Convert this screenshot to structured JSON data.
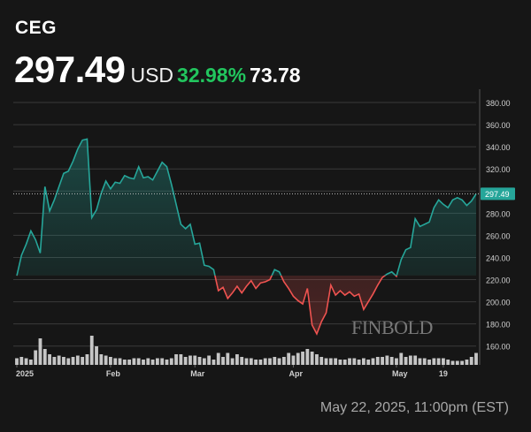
{
  "header": {
    "ticker": "CEG",
    "price": "297.49",
    "currency": "USD",
    "change_percent": "32.98%",
    "change_absolute": "73.78"
  },
  "timestamp": "May 22, 2025, 11:00pm (EST)",
  "watermark": "FINBOLD",
  "colors": {
    "background": "#161616",
    "up": "#26a69a",
    "down": "#ef5350",
    "change_text": "#22c55e",
    "grid": "#3a3a3a",
    "volume": "#d9d9d9",
    "axis_text": "#cfcfcf"
  },
  "chart_data": {
    "type": "line",
    "title": "",
    "xlabel": "",
    "ylabel": "",
    "ylim": [
      143,
      392
    ],
    "y_ticks": [
      160,
      180,
      200,
      220,
      240,
      260,
      280,
      300,
      320,
      340,
      360,
      380
    ],
    "y_tick_labels": [
      "160.00",
      "180.00",
      "200.00",
      "220.00",
      "240.00",
      "260.00",
      "280.00",
      "300.00",
      "320.00",
      "340.00",
      "360.00",
      "380.00"
    ],
    "x_tick_labels": [
      {
        "label": "2025",
        "index": 0
      },
      {
        "label": "Feb",
        "index": 20
      },
      {
        "label": "Mar",
        "index": 38
      },
      {
        "label": "Apr",
        "index": 59
      },
      {
        "label": "May",
        "index": 81
      },
      {
        "label": "19",
        "index": 91
      }
    ],
    "baseline_price": 223.71,
    "last_price": 297.49,
    "last_price_label": "297.49",
    "grid": true,
    "series": [
      {
        "values": [
          223.5,
          242,
          252,
          264,
          256,
          244,
          304,
          282,
          292,
          304,
          316,
          318,
          327,
          338,
          346,
          347,
          276,
          283,
          298,
          309,
          302,
          308,
          307,
          314,
          312,
          311,
          322,
          312,
          313,
          310,
          318,
          326,
          322,
          306,
          288,
          270,
          266,
          270,
          252,
          253,
          233,
          232,
          229,
          210,
          213,
          203,
          208,
          214,
          208,
          214,
          219,
          212,
          217,
          218,
          220,
          229,
          227,
          218,
          212,
          205,
          201,
          198,
          212,
          179,
          171,
          182,
          190,
          215,
          206,
          210,
          206,
          209,
          205,
          207,
          193,
          200,
          207,
          215,
          222,
          225,
          227,
          223,
          238,
          247,
          249,
          275,
          268,
          270,
          272,
          285,
          292,
          288,
          285,
          292,
          294,
          292,
          287,
          291,
          297.49
        ]
      }
    ],
    "volume": [
      5,
      6,
      5,
      4,
      11,
      20,
      12,
      8,
      6,
      7,
      6,
      5,
      6,
      7,
      6,
      8,
      22,
      14,
      8,
      7,
      6,
      5,
      5,
      4,
      4,
      5,
      5,
      4,
      5,
      4,
      5,
      5,
      4,
      5,
      8,
      8,
      6,
      7,
      7,
      6,
      5,
      7,
      4,
      9,
      6,
      9,
      5,
      8,
      6,
      5,
      5,
      4,
      4,
      5,
      5,
      6,
      5,
      6,
      9,
      7,
      9,
      10,
      12,
      10,
      8,
      6,
      5,
      5,
      5,
      4,
      4,
      5,
      5,
      4,
      5,
      4,
      5,
      6,
      6,
      7,
      6,
      5,
      9,
      6,
      7,
      7,
      5,
      5,
      4,
      5,
      5,
      5,
      4,
      3,
      3,
      3,
      4,
      6,
      9
    ]
  }
}
